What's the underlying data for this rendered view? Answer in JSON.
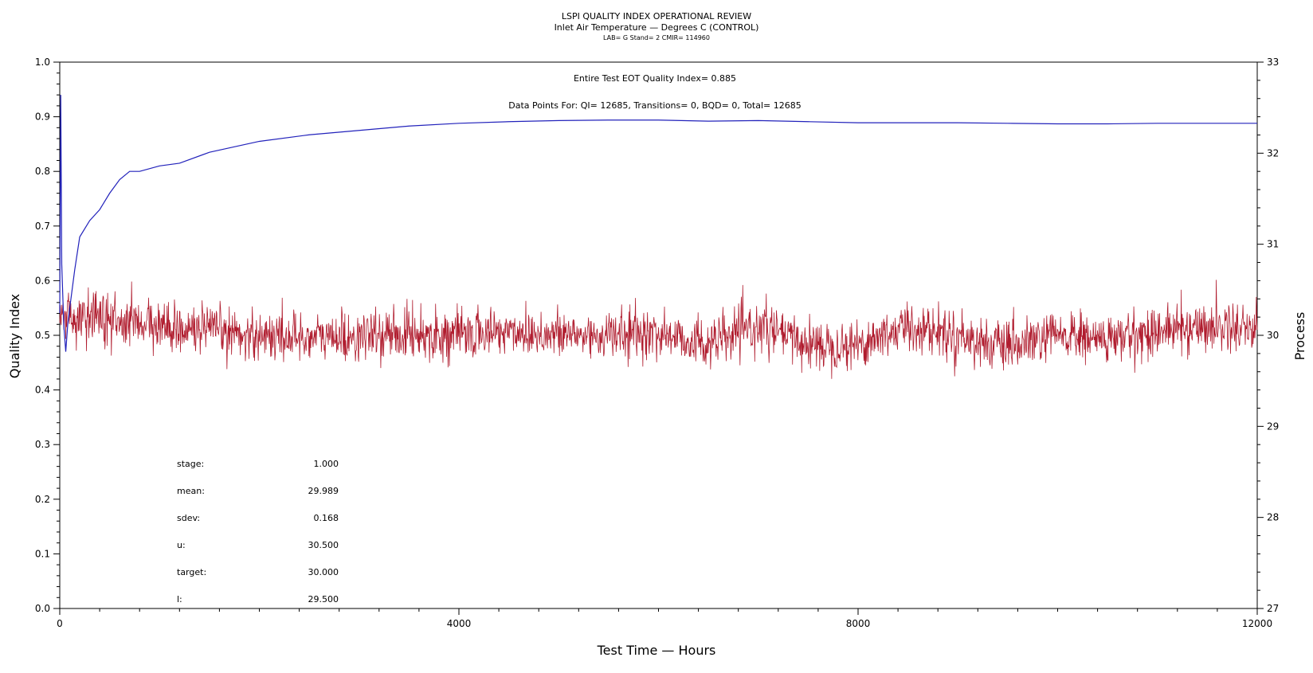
{
  "chart_data": {
    "type": "line",
    "title": "LSPI QUALITY INDEX OPERATIONAL REVIEW",
    "subtitle": "Inlet Air Temperature — Degrees C (CONTROL)",
    "subtitle2": "LAB= G Stand= 2 CMIR= 114960",
    "xlabel": "Test Time — Hours",
    "ylabel": "Quality Index",
    "y2label": "Process",
    "xlim": [
      0,
      12000
    ],
    "ylim": [
      0.0,
      1.0
    ],
    "y2lim": [
      27,
      33
    ],
    "x_ticks": [
      "0",
      "4000",
      "8000",
      "12000"
    ],
    "x_tick_values": [
      0,
      4000,
      8000,
      12000
    ],
    "y_ticks": [
      "0.0",
      "0.1",
      "0.2",
      "0.3",
      "0.4",
      "0.5",
      "0.6",
      "0.7",
      "0.8",
      "0.9",
      "1.0"
    ],
    "y_tick_values": [
      0.0,
      0.1,
      0.2,
      0.3,
      0.4,
      0.5,
      0.6,
      0.7,
      0.8,
      0.9,
      1.0
    ],
    "y2_ticks": [
      "27",
      "28",
      "29",
      "30",
      "31",
      "32",
      "33"
    ],
    "y2_tick_values": [
      27,
      28,
      29,
      30,
      31,
      32,
      33
    ],
    "annotations": [
      "Entire Test EOT Quality Index=   0.885",
      "Data Points For: QI= 12685, Transitions=     0, BQD=     0, Total= 12685"
    ],
    "stats": [
      {
        "label": "stage:",
        "value": "1.000"
      },
      {
        "label": "mean:",
        "value": "29.989"
      },
      {
        "label": "sdev:",
        "value": "0.168"
      },
      {
        "label": "u:",
        "value": "30.500"
      },
      {
        "label": "target:",
        "value": "30.000"
      },
      {
        "label": "l:",
        "value": "29.500"
      }
    ],
    "series": [
      {
        "axis": "left",
        "color": "#2222bb",
        "x": [
          0,
          10,
          20,
          40,
          60,
          80,
          100,
          150,
          200,
          300,
          400,
          500,
          600,
          700,
          800,
          1000,
          1200,
          1500,
          2000,
          2500,
          3000,
          3500,
          4000,
          4500,
          5000,
          5500,
          6000,
          6500,
          7000,
          7500,
          8000,
          8500,
          9000,
          9500,
          10000,
          10500,
          11000,
          11500,
          12000
        ],
        "values": [
          0.54,
          0.94,
          0.63,
          0.52,
          0.47,
          0.52,
          0.55,
          0.62,
          0.68,
          0.71,
          0.73,
          0.76,
          0.785,
          0.8,
          0.8,
          0.81,
          0.815,
          0.835,
          0.855,
          0.867,
          0.875,
          0.883,
          0.888,
          0.891,
          0.893,
          0.894,
          0.894,
          0.892,
          0.893,
          0.891,
          0.889,
          0.889,
          0.889,
          0.888,
          0.887,
          0.887,
          0.888,
          0.888,
          0.888
        ]
      },
      {
        "axis": "right",
        "color": "#b01c2e",
        "x": [
          0,
          200,
          500,
          1000,
          1500,
          2000,
          2500,
          3000,
          3500,
          4000,
          4500,
          5000,
          5500,
          6000,
          6500,
          7000,
          7500,
          8000,
          8500,
          9000,
          9500,
          10000,
          10500,
          11000,
          11500,
          12000
        ],
        "values": [
          30.2,
          30.2,
          30.15,
          30.1,
          30.05,
          30.0,
          29.98,
          29.98,
          30.02,
          30.0,
          30.05,
          30.0,
          30.0,
          30.02,
          29.9,
          30.1,
          29.9,
          29.9,
          30.1,
          30.0,
          29.85,
          30.0,
          29.95,
          30.05,
          30.1,
          30.1
        ],
        "sdev": 0.168
      }
    ]
  }
}
